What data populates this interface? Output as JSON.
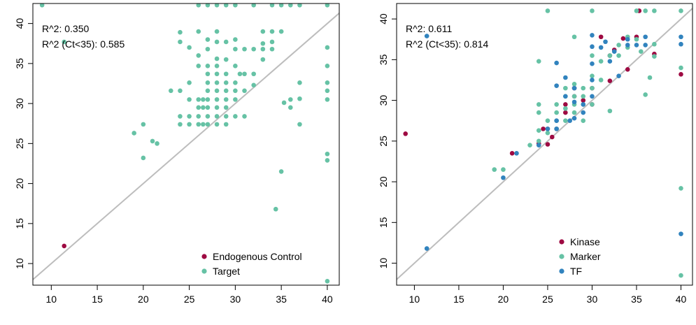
{
  "chart_data": [
    {
      "type": "scatter",
      "xlim": [
        8,
        41.3
      ],
      "ylim": [
        7.3,
        42.5
      ],
      "xticks": [
        10,
        15,
        20,
        25,
        30,
        35,
        40
      ],
      "yticks": [
        10,
        15,
        20,
        25,
        30,
        35,
        40
      ],
      "annotations": [
        "R^2: 0.350",
        "R^2 (Ct<35): 0.585"
      ],
      "reference_line": {
        "x": [
          8,
          41.3
        ],
        "y": [
          8,
          41.3
        ],
        "color": "#bdbdbd"
      },
      "legend_position": "bottom-right",
      "series": [
        {
          "name": "Endogenous Control",
          "color": "#9e0a42",
          "points": [
            [
              11.4,
              12.2
            ]
          ]
        },
        {
          "name": "Target",
          "color": "#66c2a5",
          "points": [
            [
              9,
              42.3
            ],
            [
              11.4,
              37.7
            ],
            [
              19,
              26.3
            ],
            [
              20,
              27.4
            ],
            [
              20,
              23.2
            ],
            [
              21,
              25.3
            ],
            [
              21.5,
              25
            ],
            [
              23,
              31.6
            ],
            [
              24,
              38.9
            ],
            [
              24,
              37.7
            ],
            [
              24,
              31.6
            ],
            [
              24,
              28.4
            ],
            [
              24,
              27.4
            ],
            [
              25,
              32.6
            ],
            [
              25,
              30.5
            ],
            [
              25,
              28.4
            ],
            [
              25,
              27.4
            ],
            [
              25,
              37
            ],
            [
              26,
              42.3
            ],
            [
              26,
              39
            ],
            [
              26,
              36
            ],
            [
              26,
              34.7
            ],
            [
              26,
              30.5
            ],
            [
              26,
              29.5
            ],
            [
              26,
              28.4
            ],
            [
              26,
              27.4
            ],
            [
              26.5,
              30.5
            ],
            [
              26.5,
              29.5
            ],
            [
              26.5,
              27.4
            ],
            [
              27,
              42.3
            ],
            [
              27,
              38
            ],
            [
              27,
              36.8
            ],
            [
              27,
              34.7
            ],
            [
              27,
              33.7
            ],
            [
              27,
              32.6
            ],
            [
              27,
              31.6
            ],
            [
              27,
              30.5
            ],
            [
              27,
              29.5
            ],
            [
              27,
              28.4
            ],
            [
              27,
              27.4
            ],
            [
              28,
              42.3
            ],
            [
              28,
              39
            ],
            [
              28,
              37.7
            ],
            [
              28,
              35.6
            ],
            [
              28,
              34.7
            ],
            [
              28,
              33.7
            ],
            [
              28,
              32.6
            ],
            [
              28,
              31.6
            ],
            [
              28,
              30.5
            ],
            [
              28,
              29.5
            ],
            [
              28,
              28.4
            ],
            [
              28,
              27.4
            ],
            [
              29,
              42.3
            ],
            [
              29,
              37.7
            ],
            [
              29,
              35.5
            ],
            [
              29,
              33.7
            ],
            [
              29,
              32.6
            ],
            [
              29,
              31.6
            ],
            [
              29,
              30.5
            ],
            [
              29,
              29.5
            ],
            [
              29,
              28.4
            ],
            [
              29,
              27.4
            ],
            [
              30,
              42.3
            ],
            [
              30,
              38
            ],
            [
              30,
              36.8
            ],
            [
              30,
              34.7
            ],
            [
              30,
              32.6
            ],
            [
              30,
              31.6
            ],
            [
              30,
              30.5
            ],
            [
              30,
              28.4
            ],
            [
              30.5,
              33.7
            ],
            [
              31,
              36.8
            ],
            [
              31,
              33.7
            ],
            [
              31,
              31.6
            ],
            [
              31,
              28.4
            ],
            [
              32,
              42.3
            ],
            [
              32,
              36.8
            ],
            [
              32,
              33.7
            ],
            [
              32,
              32.3
            ],
            [
              33,
              39
            ],
            [
              33,
              37.5
            ],
            [
              33,
              36.8
            ],
            [
              33,
              35.5
            ],
            [
              34,
              42.3
            ],
            [
              34,
              39
            ],
            [
              34,
              37.7
            ],
            [
              34,
              36.8
            ],
            [
              34.4,
              16.8
            ],
            [
              35,
              42.3
            ],
            [
              35,
              39
            ],
            [
              35,
              21.5
            ],
            [
              35.3,
              30.1
            ],
            [
              36,
              42.3
            ],
            [
              36,
              30.5
            ],
            [
              36,
              29.5
            ],
            [
              37,
              42.3
            ],
            [
              37,
              32.6
            ],
            [
              37,
              30.6
            ],
            [
              37,
              27.4
            ],
            [
              40,
              42.3
            ],
            [
              40,
              37
            ],
            [
              40,
              34.7
            ],
            [
              40,
              32.6
            ],
            [
              40,
              31.6
            ],
            [
              40,
              30.5
            ],
            [
              40,
              23.7
            ],
            [
              40,
              22.9
            ],
            [
              40,
              7.8
            ]
          ]
        }
      ]
    },
    {
      "type": "scatter",
      "xlim": [
        8,
        41.3
      ],
      "ylim": [
        7.3,
        41.9
      ],
      "xticks": [
        10,
        15,
        20,
        25,
        30,
        35,
        40
      ],
      "yticks": [
        10,
        15,
        20,
        25,
        30,
        35,
        40
      ],
      "annotations": [
        "R^2: 0.611",
        "R^2 (Ct<35): 0.814"
      ],
      "reference_line": {
        "x": [
          8,
          41.3
        ],
        "y": [
          8,
          41.3
        ],
        "color": "#bdbdbd"
      },
      "legend_position": "bottom-right",
      "series": [
        {
          "name": "Kinase",
          "color": "#9e0a42",
          "points": [
            [
              9,
              25.9
            ],
            [
              21,
              23.5
            ],
            [
              24,
              24.7
            ],
            [
              24.5,
              26.5
            ],
            [
              25,
              24.6
            ],
            [
              25,
              26.5
            ],
            [
              25.5,
              25.5
            ],
            [
              26,
              26.5
            ],
            [
              27,
              29.5
            ],
            [
              27,
              28.5
            ],
            [
              28,
              31.5
            ],
            [
              28,
              30.5
            ],
            [
              29,
              30
            ],
            [
              30,
              31.5
            ],
            [
              30,
              29.5
            ],
            [
              31,
              37.8
            ],
            [
              32,
              35.5
            ],
            [
              32,
              32.4
            ],
            [
              32.5,
              36.2
            ],
            [
              33.5,
              37.6
            ],
            [
              34,
              33.8
            ],
            [
              35,
              37.8
            ],
            [
              35.3,
              41
            ],
            [
              37,
              35.7
            ],
            [
              40,
              33.2
            ]
          ]
        },
        {
          "name": "Marker",
          "color": "#66c2a5",
          "points": [
            [
              19,
              21.5
            ],
            [
              20,
              21.5
            ],
            [
              23,
              24.5
            ],
            [
              24,
              25
            ],
            [
              24,
              26.3
            ],
            [
              24,
              28.5
            ],
            [
              24,
              29.5
            ],
            [
              24,
              34.8
            ],
            [
              25,
              41
            ],
            [
              25,
              27.5
            ],
            [
              25,
              26
            ],
            [
              26,
              29.5
            ],
            [
              26,
              28.5
            ],
            [
              26,
              27.5
            ],
            [
              26,
              26.5
            ],
            [
              27,
              31.5
            ],
            [
              27,
              30.5
            ],
            [
              27,
              29
            ],
            [
              27,
              27.5
            ],
            [
              28,
              37.8
            ],
            [
              28,
              32
            ],
            [
              28,
              30.5
            ],
            [
              28,
              29.5
            ],
            [
              28,
              28.5
            ],
            [
              29,
              31.5
            ],
            [
              29,
              30.5
            ],
            [
              29,
              29.5
            ],
            [
              29,
              27.5
            ],
            [
              30,
              41
            ],
            [
              30,
              35.5
            ],
            [
              30,
              33
            ],
            [
              30,
              31.5
            ],
            [
              30,
              29.5
            ],
            [
              31,
              34.8
            ],
            [
              31,
              32.5
            ],
            [
              32,
              35.5
            ],
            [
              32,
              28.7
            ],
            [
              33,
              36.8
            ],
            [
              33,
              35.5
            ],
            [
              34,
              37.8
            ],
            [
              34,
              36.5
            ],
            [
              35,
              41
            ],
            [
              35,
              37.5
            ],
            [
              35.5,
              36
            ],
            [
              36,
              41
            ],
            [
              36,
              30.7
            ],
            [
              36.5,
              32.8
            ],
            [
              37,
              41
            ],
            [
              37,
              36.9
            ],
            [
              37,
              35.4
            ],
            [
              40,
              41
            ],
            [
              40,
              34
            ],
            [
              40,
              19.2
            ],
            [
              40,
              8.5
            ]
          ]
        },
        {
          "name": "TF",
          "color": "#3183be",
          "points": [
            [
              11.4,
              37.9
            ],
            [
              11.4,
              11.8
            ],
            [
              20,
              20.5
            ],
            [
              21.5,
              23.5
            ],
            [
              24,
              24.5
            ],
            [
              25,
              26.5
            ],
            [
              26,
              34.6
            ],
            [
              26,
              31.8
            ],
            [
              26,
              27.5
            ],
            [
              26,
              26.5
            ],
            [
              27,
              32.8
            ],
            [
              27,
              30.5
            ],
            [
              27.5,
              27.5
            ],
            [
              28,
              31.5
            ],
            [
              28,
              29.8
            ],
            [
              28,
              27.8
            ],
            [
              29,
              29.5
            ],
            [
              29,
              28.5
            ],
            [
              30,
              38
            ],
            [
              30,
              36.6
            ],
            [
              30,
              34.5
            ],
            [
              30,
              32.5
            ],
            [
              30,
              30.5
            ],
            [
              31,
              36.5
            ],
            [
              31.5,
              37.2
            ],
            [
              32,
              34.8
            ],
            [
              32.5,
              36
            ],
            [
              33,
              33
            ],
            [
              34,
              37.5
            ],
            [
              34,
              36.8
            ],
            [
              35,
              36.8
            ],
            [
              36,
              37.8
            ],
            [
              36,
              36.8
            ],
            [
              40,
              37.8
            ],
            [
              40,
              36.9
            ],
            [
              40,
              13.6
            ]
          ]
        }
      ]
    }
  ]
}
